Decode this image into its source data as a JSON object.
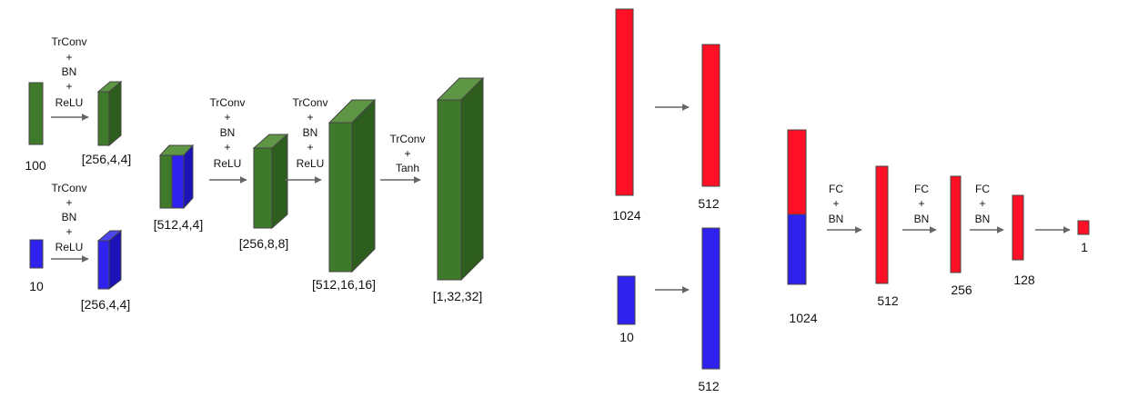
{
  "colors": {
    "green_front": "#3f7a2a",
    "green_top": "#5f9646",
    "green_side": "#2d5e1e",
    "blue_front": "#2f22ef",
    "blue_top": "#4c46f0",
    "blue_side": "#1d12b8",
    "red": "#ff1024",
    "outline": "#444444",
    "arrow": "#666666"
  },
  "generator": {
    "noise_label": "100",
    "noise_op": [
      "TrConv",
      "+",
      "BN",
      "+",
      "ReLU"
    ],
    "noise_out": "[256,4,4]",
    "cond_label": "10",
    "cond_op": [
      "TrConv",
      "+",
      "BN",
      "+",
      "ReLU"
    ],
    "cond_out": "[256,4,4]",
    "concat_out": "[512,4,4]",
    "op1": [
      "TrConv",
      "+",
      "BN",
      "+",
      "ReLU"
    ],
    "out1": "[256,8,8]",
    "op2": [
      "TrConv",
      "+",
      "BN",
      "+",
      "ReLU"
    ],
    "out2": "[512,16,16]",
    "op3": [
      "TrConv",
      "+",
      "Tanh"
    ],
    "out3": "[1,32,32]"
  },
  "discriminator": {
    "img_in": "1024",
    "img_fc": "512",
    "cond_in": "10",
    "cond_fc": "512",
    "concat": "1024",
    "op1": [
      "FC",
      "+",
      "BN"
    ],
    "out1": "512",
    "op2": [
      "FC",
      "+",
      "BN"
    ],
    "out2": "256",
    "op3": [
      "FC",
      "+",
      "BN"
    ],
    "out3": "128",
    "out4": "1"
  }
}
